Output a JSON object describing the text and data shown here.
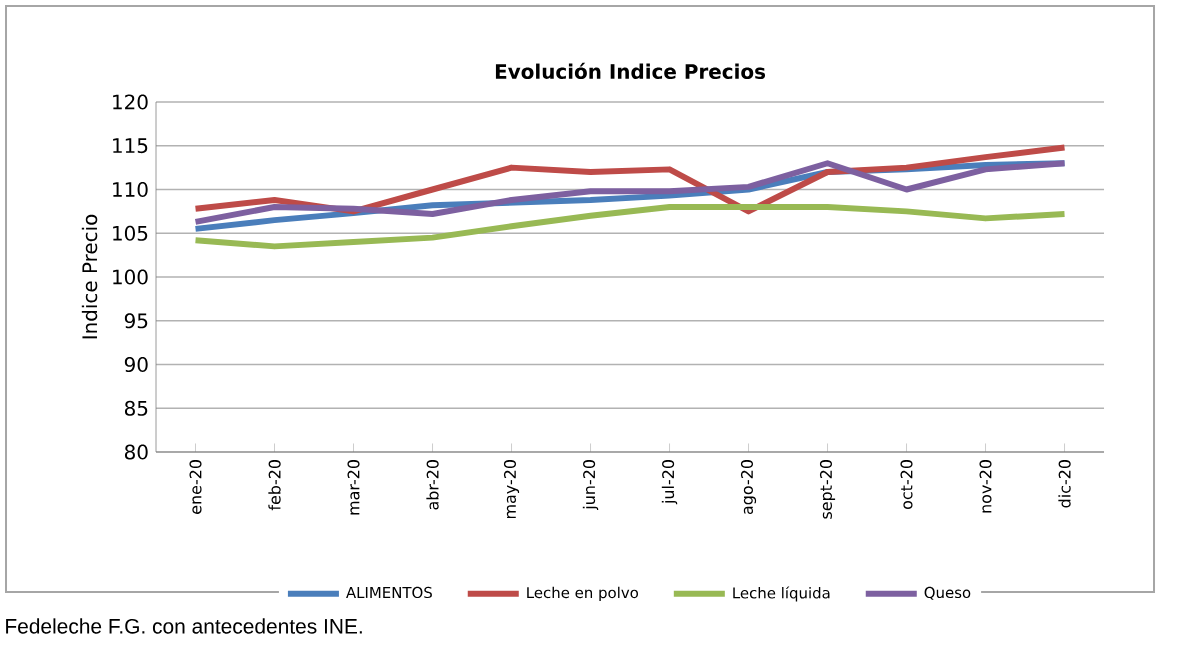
{
  "chart_data": {
    "type": "line",
    "title": "Evolución  Indice Precios",
    "ylabel": "Indice Precio",
    "categories": [
      "ene-20",
      "feb-20",
      "mar-20",
      "abr-20",
      "may-20",
      "jun-20",
      "jul-20",
      "ago-20",
      "sept-20",
      "oct-20",
      "nov-20",
      "dic-20"
    ],
    "series": [
      {
        "name": "ALIMENTOS",
        "color": "#4a7ebb",
        "values": [
          105.5,
          106.5,
          107.3,
          108.2,
          108.5,
          108.8,
          109.3,
          110,
          112,
          112.3,
          112.8,
          113
        ]
      },
      {
        "name": "Leche en polvo",
        "color": "#be4b48",
        "values": [
          107.8,
          108.8,
          107.5,
          110,
          112.5,
          112,
          112.3,
          107.5,
          112,
          112.5,
          113.7,
          114.8
        ]
      },
      {
        "name": "Leche líquida",
        "color": "#98b954",
        "values": [
          104.2,
          103.5,
          104,
          104.5,
          105.8,
          107,
          108,
          108,
          108,
          107.5,
          106.7,
          107.2
        ]
      },
      {
        "name": "Queso",
        "color": "#7d60a0",
        "values": [
          106.3,
          108,
          107.8,
          107.2,
          108.8,
          109.8,
          109.8,
          110.3,
          113,
          110,
          112.3,
          113
        ]
      }
    ],
    "ylim": [
      80,
      120
    ],
    "yticks": [
      80,
      85,
      90,
      95,
      100,
      105,
      110,
      115,
      120
    ],
    "grid": "y",
    "legend": "bottom",
    "marker": "none",
    "line_style": "solid",
    "annotations": [
      "Fedeleche F.G. con antecedentes INE."
    ]
  }
}
